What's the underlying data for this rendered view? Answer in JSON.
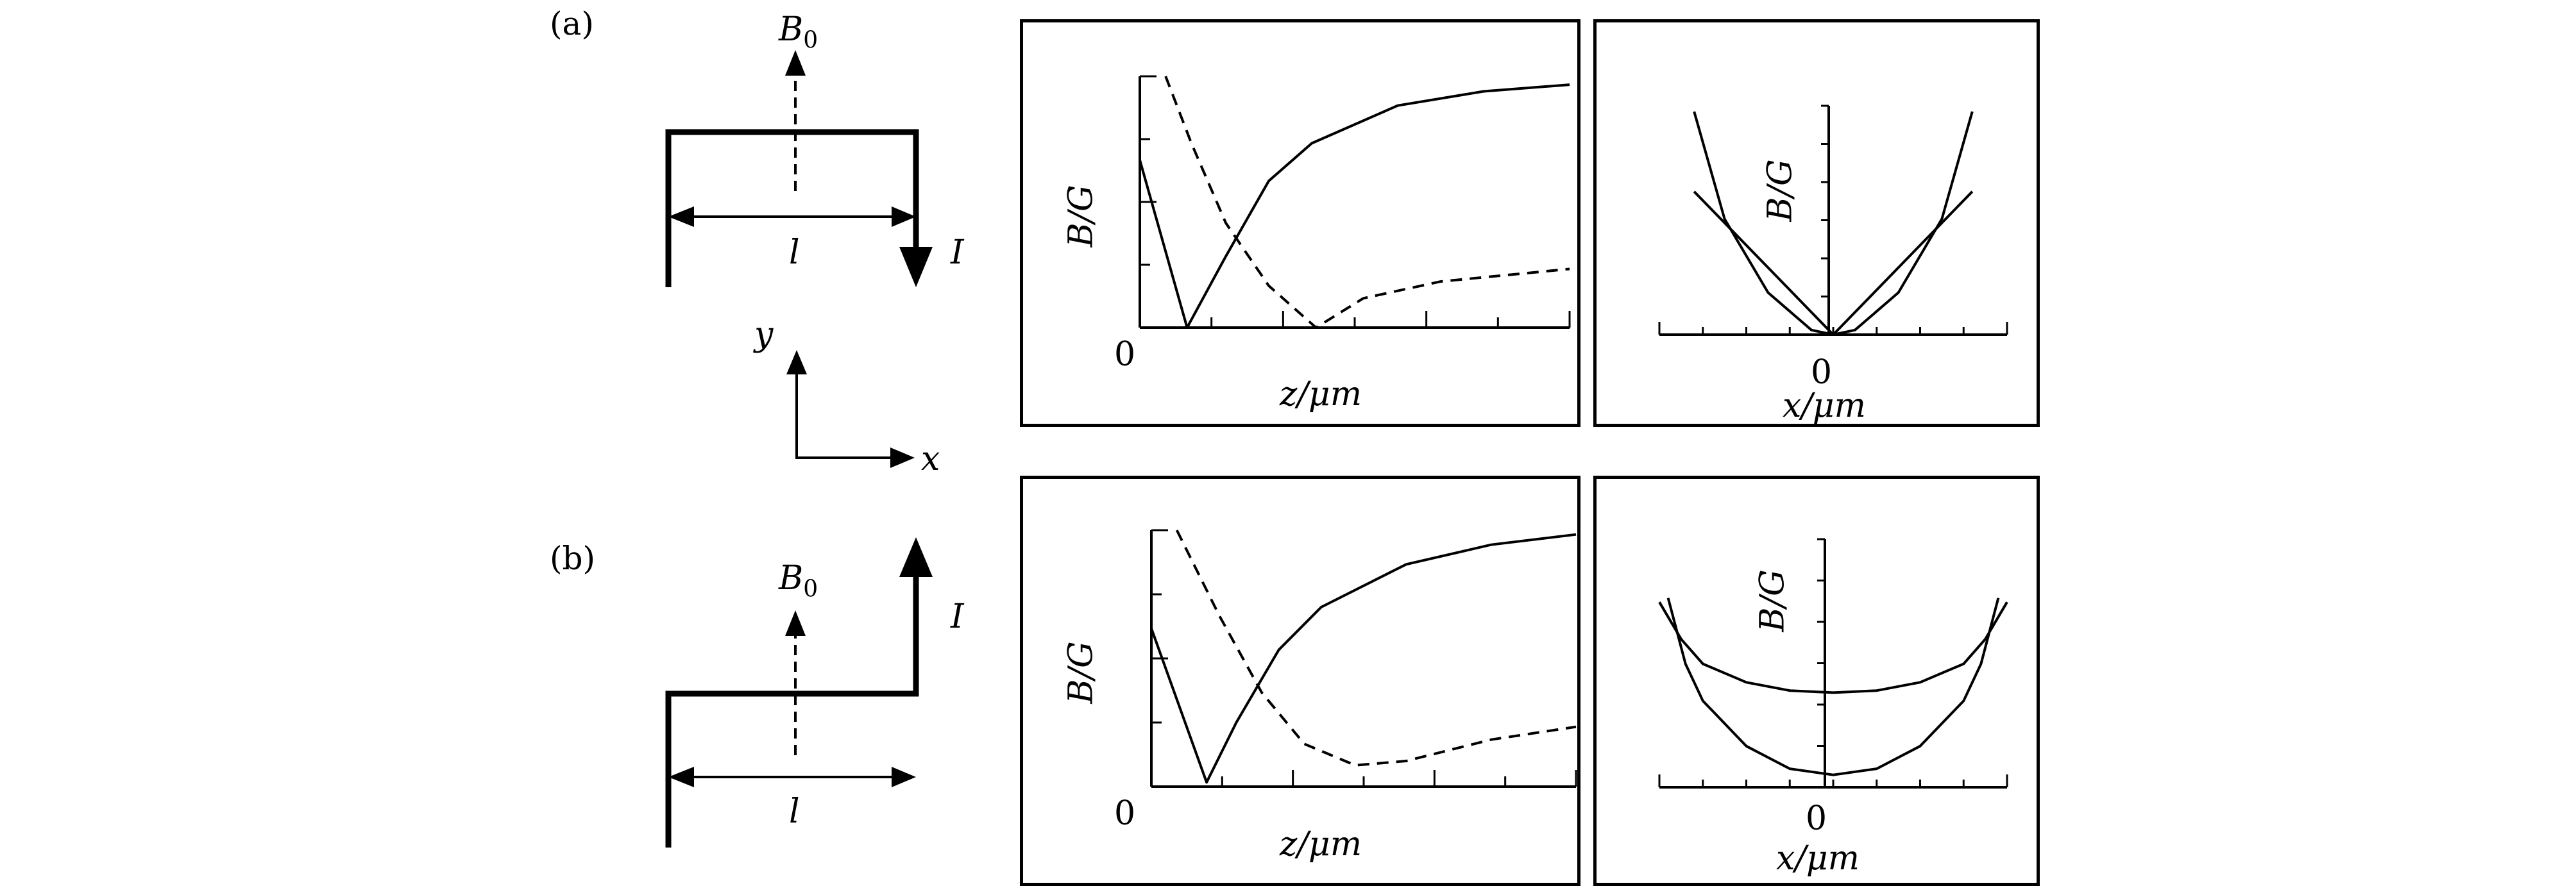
{
  "panels": [
    {
      "label": "(a)",
      "field_label": "B",
      "field_sub": "0",
      "length_label": "l",
      "current_label": "I",
      "chart_left": {
        "x_label": "z/μm",
        "y_label": "B/G",
        "origin_label": "0"
      },
      "chart_right": {
        "x_label": "x/μm",
        "y_label": "B/G",
        "origin_label": "0"
      }
    },
    {
      "label": "(b)",
      "field_label": "B",
      "field_sub": "0",
      "length_label": "l",
      "current_label": "I",
      "chart_left": {
        "x_label": "z/μm",
        "y_label": "B/G",
        "origin_label": "0"
      },
      "chart_right": {
        "x_label": "x/μm",
        "y_label": "B/G",
        "origin_label": "0"
      }
    }
  ],
  "axes_legend": {
    "x": "x",
    "y": "y"
  },
  "chart_data": [
    {
      "panel": "(a)",
      "type": "line",
      "xlim": [
        0,
        5
      ],
      "ylim": [
        0,
        3
      ],
      "series": [
        {
          "style": "solid",
          "x": [
            0,
            0.55,
            1.0,
            1.5,
            2.0,
            3.0,
            4.0,
            5.0
          ],
          "y": [
            2.0,
            0.0,
            0.85,
            1.75,
            2.2,
            2.65,
            2.82,
            2.9
          ]
        },
        {
          "style": "dashed",
          "x": [
            0.3,
            0.6,
            1.0,
            1.5,
            2.05,
            2.6,
            3.5,
            5.0
          ],
          "y": [
            3.0,
            2.2,
            1.25,
            0.5,
            0.0,
            0.35,
            0.55,
            0.7
          ]
        }
      ]
    },
    {
      "panel": "(a)",
      "type": "line",
      "xlim": [
        -4,
        4
      ],
      "ylim": [
        0,
        5.5
      ],
      "series": [
        {
          "style": "solid",
          "x": [
            -3.2,
            -2.5,
            -1.5,
            -0.5,
            0,
            0.5,
            1.5,
            2.5,
            3.2
          ],
          "y": [
            5.3,
            2.75,
            1.0,
            0.11,
            0,
            0.11,
            1.0,
            2.75,
            5.3
          ]
        },
        {
          "style": "solid",
          "x": [
            -3.2,
            0,
            3.2
          ],
          "y": [
            3.4,
            0,
            3.4
          ]
        }
      ]
    },
    {
      "panel": "(b)",
      "type": "line",
      "xlim": [
        0,
        5
      ],
      "ylim": [
        0,
        3
      ],
      "series": [
        {
          "style": "solid",
          "x": [
            0,
            0.65,
            1.0,
            1.5,
            2.0,
            3.0,
            4.0,
            5.0
          ],
          "y": [
            1.85,
            0.05,
            0.75,
            1.6,
            2.1,
            2.6,
            2.83,
            2.95
          ]
        },
        {
          "style": "dashed",
          "x": [
            0.3,
            0.8,
            1.3,
            1.8,
            2.4,
            3.0,
            4.0,
            5.0
          ],
          "y": [
            3.0,
            2.0,
            1.1,
            0.5,
            0.25,
            0.3,
            0.55,
            0.7
          ]
        }
      ]
    },
    {
      "panel": "(b)",
      "type": "line",
      "xlim": [
        -4,
        4
      ],
      "ylim": [
        0,
        5.5
      ],
      "series": [
        {
          "style": "solid",
          "x": [
            -4.0,
            -3.5,
            -3.0,
            -2.0,
            -1.0,
            0,
            1.0,
            2.0,
            3.0,
            3.5,
            4.0
          ],
          "y": [
            4.5,
            3.6,
            3.0,
            2.55,
            2.35,
            2.3,
            2.35,
            2.55,
            3.0,
            3.6,
            4.5
          ]
        },
        {
          "style": "solid",
          "x": [
            -3.8,
            -3.4,
            -3.0,
            -2.0,
            -1.0,
            0,
            1.0,
            2.0,
            3.0,
            3.4,
            3.8
          ],
          "y": [
            4.6,
            3.0,
            2.1,
            1.0,
            0.45,
            0.3,
            0.45,
            1.0,
            2.1,
            3.0,
            4.6
          ]
        }
      ]
    }
  ]
}
